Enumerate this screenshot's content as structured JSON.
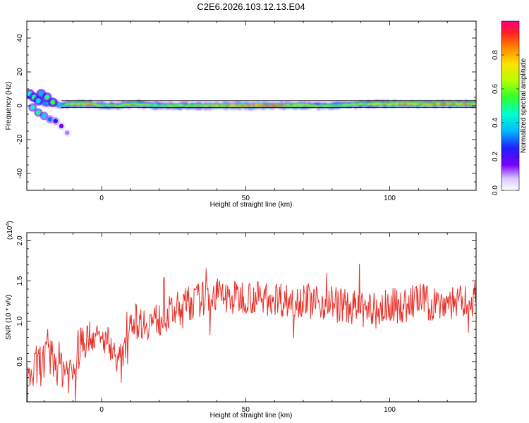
{
  "chart_data": [
    {
      "type": "heatmap",
      "title": "C2E6.2026.103.12.13.E04",
      "xlabel": "Height of straight line (km)",
      "ylabel": "Frequency (Hz)",
      "xlim": [
        -26,
        130
      ],
      "ylim": [
        -50,
        50
      ],
      "xticks": [
        0,
        50,
        100
      ],
      "yticks": [
        -40,
        -20,
        0,
        20,
        40
      ],
      "colorbar": {
        "label": "Normalized spectral amplitude",
        "range": [
          0.0,
          1.0
        ],
        "ticks": [
          "0.0",
          "0.2",
          "0.4",
          "0.6",
          "0.8"
        ],
        "tick_values": [
          0.0,
          0.2,
          0.4,
          0.6,
          0.8
        ]
      },
      "ridge": {
        "description_of_data": "dominant frequency band vs height",
        "x": [
          -26,
          -24,
          -22,
          -20,
          -18,
          -16,
          -14,
          -12,
          -10,
          -8,
          -5,
          0,
          5,
          10,
          20,
          30,
          40,
          50,
          60,
          70,
          80,
          90,
          100,
          110,
          120,
          130
        ],
        "freq": [
          6,
          5,
          3,
          1,
          2,
          1,
          0,
          1,
          1,
          1,
          1,
          0,
          0,
          1,
          0,
          0,
          0,
          0,
          0,
          0,
          0,
          1,
          1,
          1,
          1,
          1
        ],
        "amplitude": [
          0.5,
          0.55,
          0.5,
          0.4,
          0.45,
          0.5,
          0.6,
          0.7,
          0.75,
          0.8,
          0.85,
          0.6,
          0.7,
          0.75,
          0.65,
          0.7,
          0.85,
          0.95,
          0.9,
          0.75,
          0.65,
          0.7,
          0.8,
          0.85,
          0.85,
          0.8
        ]
      },
      "spurious_branch": {
        "x": [
          -24,
          -22,
          -20,
          -18,
          -16,
          -14,
          -12
        ],
        "freq": [
          -1,
          -4,
          -6,
          -8,
          -9,
          -12,
          -16
        ],
        "amplitude": [
          0.45,
          0.5,
          0.4,
          0.3,
          0.25,
          0.15,
          0.1
        ]
      }
    },
    {
      "type": "line",
      "xlabel": "Height of straight line (km)",
      "ylabel": "SNR (10 * v/v)",
      "multiplier": "(x10",
      "multiplier_exp": "4",
      "xlim": [
        -26,
        130
      ],
      "ylim": [
        0.0,
        2.1
      ],
      "xticks": [
        0,
        50,
        100
      ],
      "yticks": [
        0.5,
        1.0,
        1.5,
        2.0
      ],
      "ytick_labels": [
        "0.5",
        "1.0",
        "1.5",
        "2.0"
      ],
      "color": "#e8302a",
      "series": [
        {
          "name": "SNR",
          "x": [
            -26,
            -22,
            -18,
            -14,
            -10,
            -8,
            -6,
            -4,
            -2,
            0,
            2,
            4,
            6,
            8,
            10,
            12,
            15,
            20,
            25,
            30,
            35,
            40,
            45,
            50,
            55,
            60,
            65,
            70,
            75,
            80,
            85,
            90,
            95,
            100,
            105,
            110,
            115,
            120,
            125,
            130
          ],
          "values": [
            0.25,
            0.45,
            0.55,
            0.45,
            0.35,
            0.65,
            0.78,
            0.82,
            0.8,
            0.75,
            0.78,
            0.62,
            0.52,
            0.62,
            1.05,
            1.0,
            0.98,
            1.02,
            1.12,
            1.22,
            1.28,
            1.33,
            1.28,
            1.32,
            1.28,
            1.3,
            1.25,
            1.28,
            1.22,
            1.25,
            1.18,
            1.15,
            1.1,
            1.2,
            1.18,
            1.28,
            1.2,
            1.25,
            1.22,
            1.3
          ]
        }
      ]
    }
  ]
}
